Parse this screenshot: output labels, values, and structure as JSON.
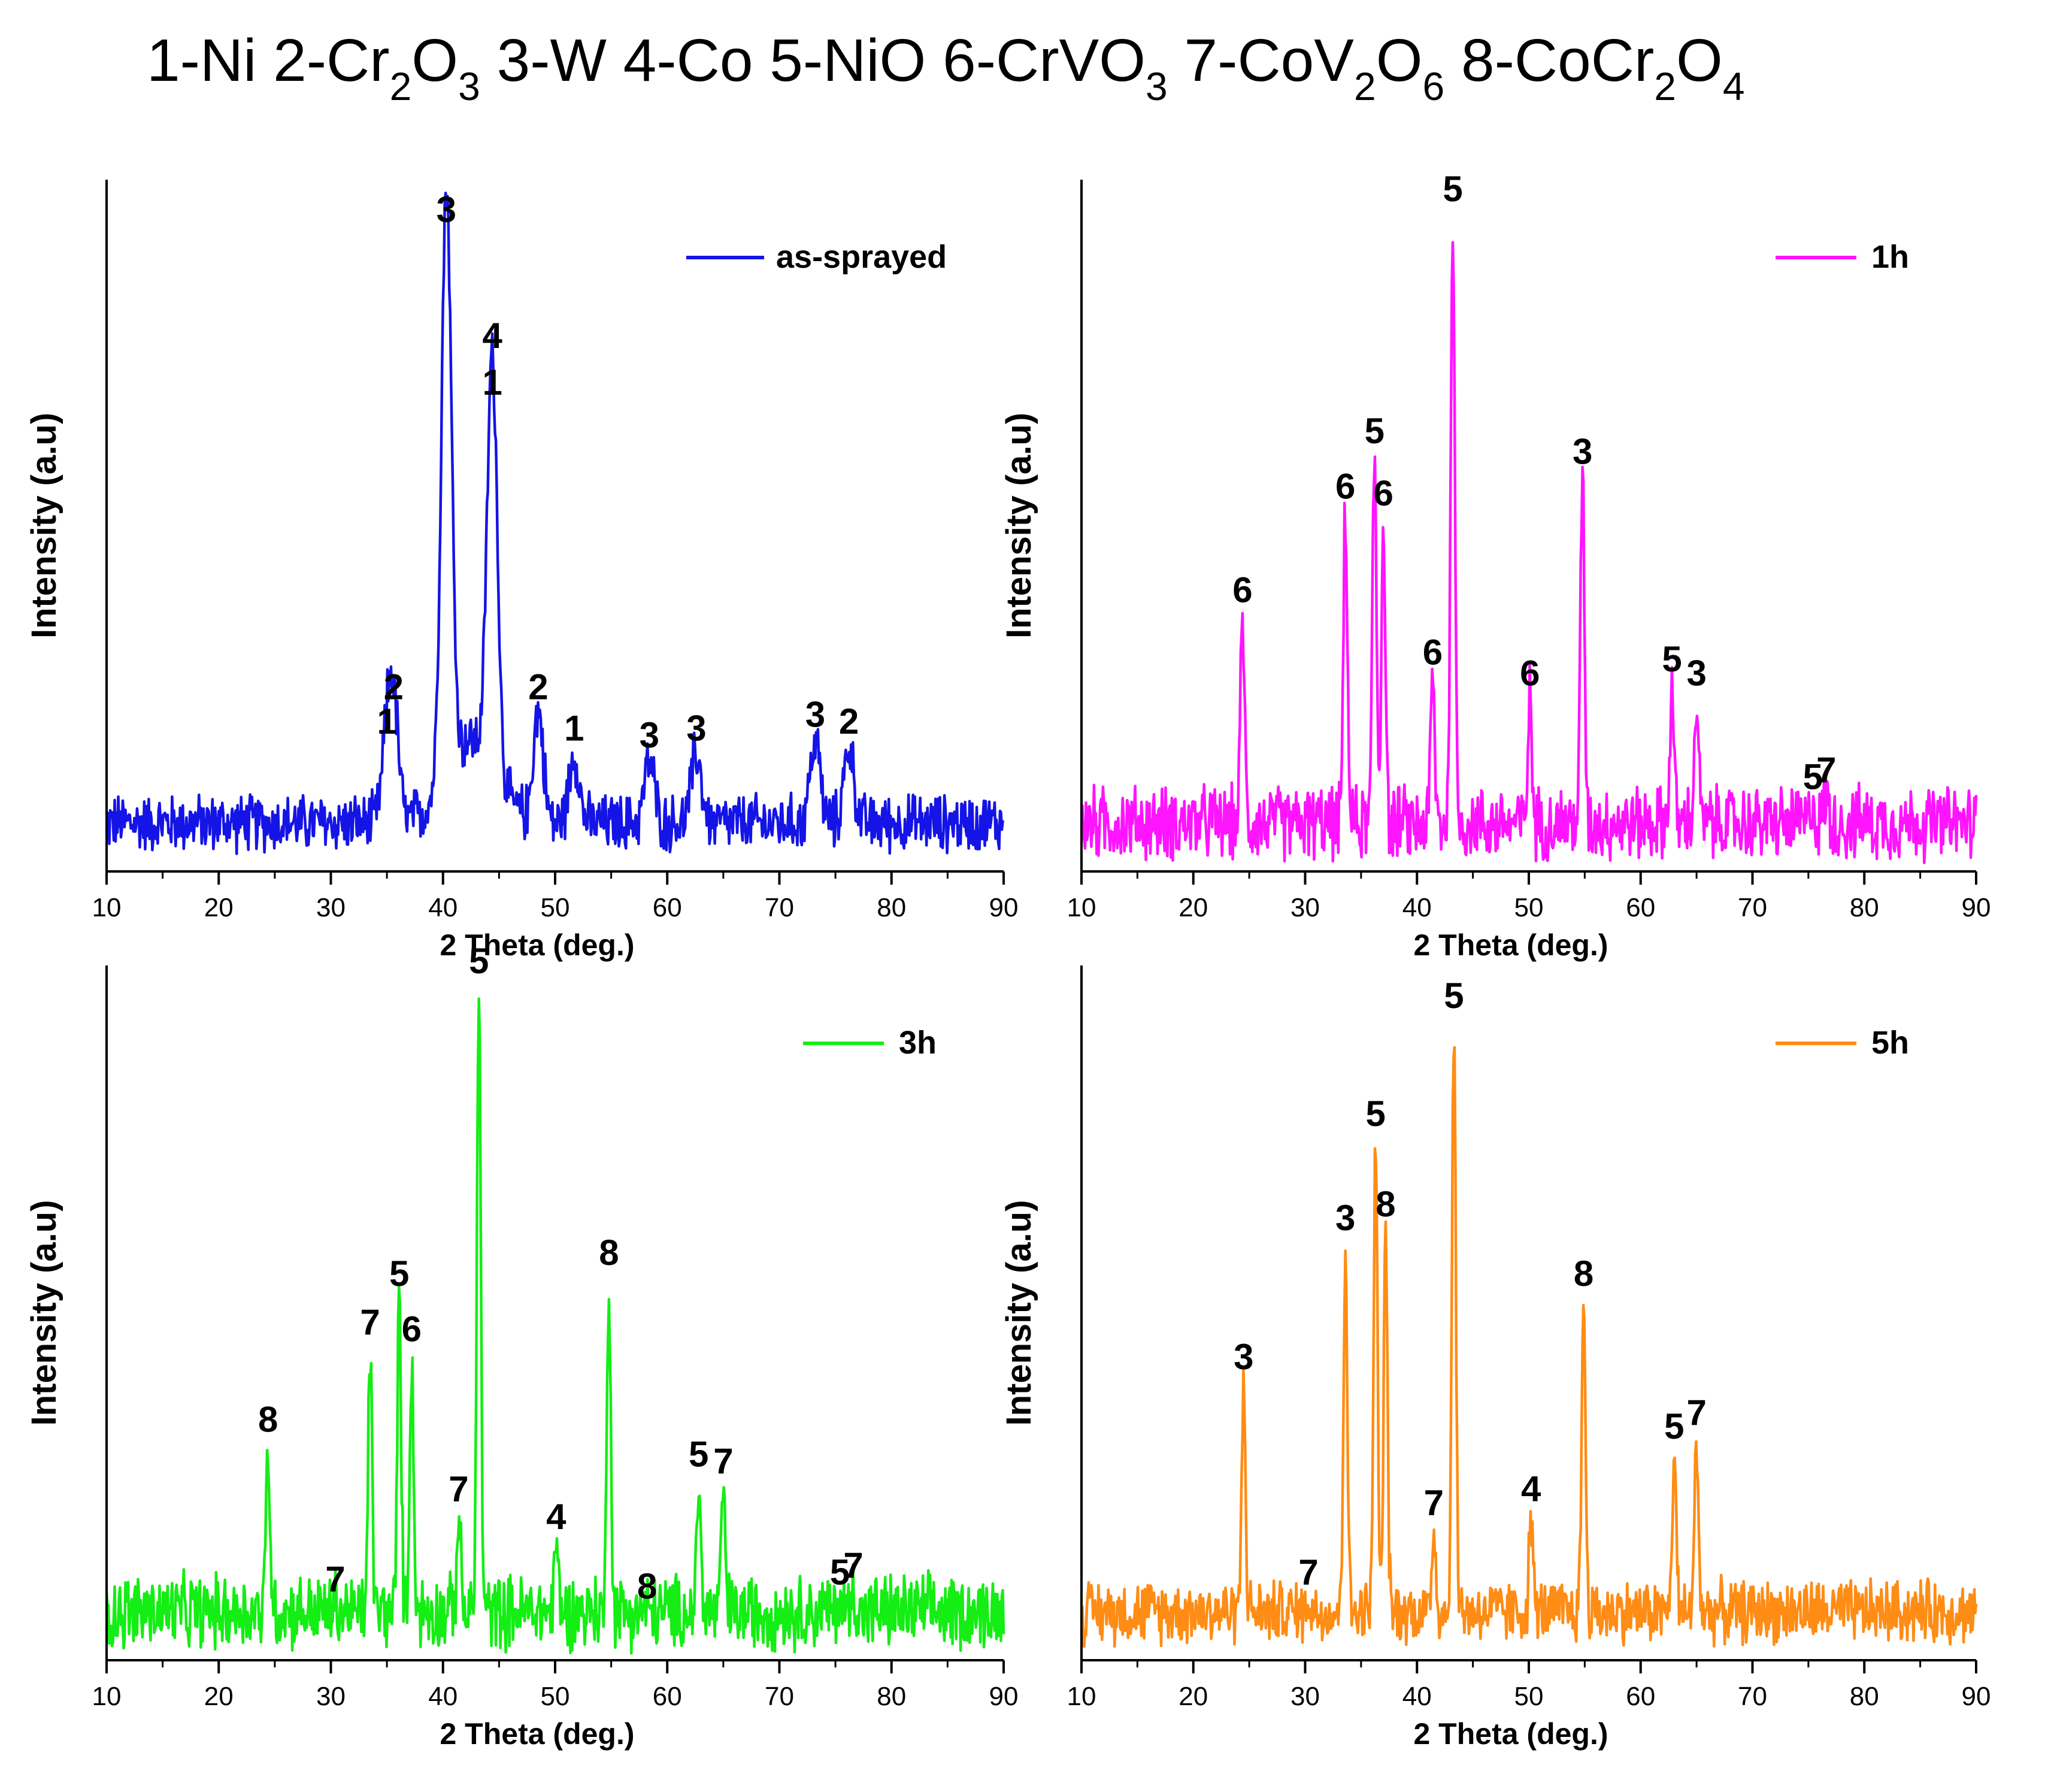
{
  "figure_title": {
    "prefix": "1-Ni 2-Cr",
    "parts": [
      {
        "text": "1-Ni 2-Cr",
        "sub": "2"
      },
      {
        "text": "O",
        "sub": "3"
      },
      {
        "text": " 3-W  4-Co 5-NiO 6-CrVO",
        "sub": "3"
      },
      {
        "text": " 7-CoV",
        "sub": "2"
      },
      {
        "text": "O",
        "sub": "6"
      },
      {
        "text": " 8-CoCr",
        "sub": "2"
      },
      {
        "text": "O",
        "sub": "4"
      }
    ]
  },
  "colors": {
    "as-sprayed": "#1414e6",
    "1h": "#ff14ff",
    "3h": "#14ee14",
    "5h": "#ff8c14"
  },
  "chart_data": [
    {
      "type": "line",
      "legend": "as-sprayed",
      "xlabel": "2 Theta (deg.)",
      "ylabel": "Intensity (a.u)",
      "xlim": [
        10,
        90
      ],
      "ylim": [
        0,
        1
      ],
      "xticks": [
        10,
        20,
        30,
        40,
        50,
        60,
        70,
        80,
        90
      ],
      "legend_position": "top-right",
      "peaks": [
        {
          "x": 35.0,
          "y": 0.18,
          "label": "1"
        },
        {
          "x": 35.6,
          "y": 0.23,
          "label": "2"
        },
        {
          "x": 40.3,
          "y": 0.92,
          "label": "3"
        },
        {
          "x": 44.4,
          "y": 0.67,
          "label": "4\n1"
        },
        {
          "x": 48.5,
          "y": 0.23,
          "label": "2"
        },
        {
          "x": 51.7,
          "y": 0.17,
          "label": "1"
        },
        {
          "x": 58.4,
          "y": 0.16,
          "label": "3"
        },
        {
          "x": 62.6,
          "y": 0.17,
          "label": "3"
        },
        {
          "x": 73.2,
          "y": 0.19,
          "label": "3"
        },
        {
          "x": 76.2,
          "y": 0.18,
          "label": "2"
        }
      ]
    },
    {
      "type": "line",
      "legend": "1h",
      "xlabel": "2 Theta (deg.)",
      "ylabel": "Intensity (a.u)",
      "xlim": [
        10,
        90
      ],
      "ylim": [
        0,
        1
      ],
      "xticks": [
        10,
        20,
        30,
        40,
        50,
        60,
        70,
        80,
        90
      ],
      "legend_position": "top-right",
      "peaks": [
        {
          "x": 24.4,
          "y": 0.37,
          "label": "6"
        },
        {
          "x": 33.6,
          "y": 0.52,
          "label": "6"
        },
        {
          "x": 36.2,
          "y": 0.6,
          "label": "5"
        },
        {
          "x": 37.0,
          "y": 0.51,
          "label": "6"
        },
        {
          "x": 41.4,
          "y": 0.28,
          "label": "6"
        },
        {
          "x": 43.2,
          "y": 0.95,
          "label": "5"
        },
        {
          "x": 50.1,
          "y": 0.25,
          "label": "6"
        },
        {
          "x": 54.8,
          "y": 0.57,
          "label": "3"
        },
        {
          "x": 62.8,
          "y": 0.27,
          "label": "5"
        },
        {
          "x": 65.0,
          "y": 0.25,
          "label": "3"
        },
        {
          "x": 75.4,
          "y": 0.1,
          "label": "5"
        },
        {
          "x": 76.6,
          "y": 0.11,
          "label": "7"
        }
      ]
    },
    {
      "type": "line",
      "legend": "3h",
      "xlabel": "2 Theta (deg.)",
      "ylabel": "Intensity (a.u)",
      "xlim": [
        10,
        90
      ],
      "ylim": [
        0,
        1
      ],
      "xticks": [
        10,
        20,
        30,
        40,
        50,
        60,
        70,
        80,
        90
      ],
      "legend_position": "top-right",
      "peaks": [
        {
          "x": 24.4,
          "y": 0.31,
          "label": "8"
        },
        {
          "x": 30.4,
          "y": 0.08,
          "label": "7"
        },
        {
          "x": 33.5,
          "y": 0.45,
          "label": "7"
        },
        {
          "x": 36.1,
          "y": 0.52,
          "label": "5"
        },
        {
          "x": 37.2,
          "y": 0.44,
          "label": "6"
        },
        {
          "x": 41.4,
          "y": 0.21,
          "label": "7"
        },
        {
          "x": 43.2,
          "y": 0.97,
          "label": "5"
        },
        {
          "x": 50.1,
          "y": 0.17,
          "label": "4"
        },
        {
          "x": 54.8,
          "y": 0.55,
          "label": "8"
        },
        {
          "x": 58.2,
          "y": 0.07,
          "label": "8"
        },
        {
          "x": 62.8,
          "y": 0.26,
          "label": "5"
        },
        {
          "x": 65.0,
          "y": 0.25,
          "label": "7"
        },
        {
          "x": 75.4,
          "y": 0.09,
          "label": "5"
        },
        {
          "x": 76.6,
          "y": 0.1,
          "label": "7"
        }
      ]
    },
    {
      "type": "line",
      "legend": "5h",
      "xlabel": "2 Theta (deg.)",
      "ylabel": "Intensity (a.u)",
      "xlim": [
        10,
        90
      ],
      "ylim": [
        0,
        1
      ],
      "xticks": [
        10,
        20,
        30,
        40,
        50,
        60,
        70,
        80,
        90
      ],
      "legend_position": "top-right",
      "peaks": [
        {
          "x": 24.5,
          "y": 0.4,
          "label": "3"
        },
        {
          "x": 30.3,
          "y": 0.09,
          "label": "7"
        },
        {
          "x": 33.6,
          "y": 0.6,
          "label": "3"
        },
        {
          "x": 36.3,
          "y": 0.75,
          "label": "5"
        },
        {
          "x": 37.2,
          "y": 0.62,
          "label": "8"
        },
        {
          "x": 41.5,
          "y": 0.19,
          "label": "7"
        },
        {
          "x": 43.3,
          "y": 0.92,
          "label": "5"
        },
        {
          "x": 50.2,
          "y": 0.21,
          "label": "4"
        },
        {
          "x": 54.9,
          "y": 0.52,
          "label": "8"
        },
        {
          "x": 63.0,
          "y": 0.3,
          "label": "5"
        },
        {
          "x": 65.0,
          "y": 0.32,
          "label": "7"
        }
      ]
    }
  ]
}
